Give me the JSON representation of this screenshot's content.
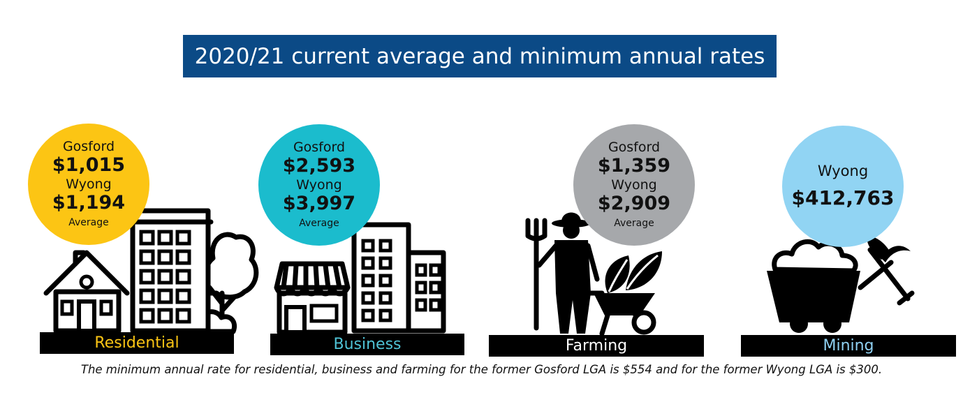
{
  "title": "2020/21 current average and minimum annual rates",
  "colors": {
    "title_bg": "#0b4a86",
    "residential": "#fcc514",
    "business": "#1bbccd",
    "farming": "#a6a8ab",
    "mining": "#91d4f3"
  },
  "categories": [
    {
      "name": "Residential",
      "gosford_label": "Gosford",
      "gosford_value": "$1,015",
      "wyong_label": "Wyong",
      "wyong_value": "$1,194",
      "note": "Average",
      "icon": "house-and-apartment-icon"
    },
    {
      "name": "Business",
      "gosford_label": "Gosford",
      "gosford_value": "$2,593",
      "wyong_label": "Wyong",
      "wyong_value": "$3,997",
      "note": "Average",
      "icon": "shop-and-office-icon"
    },
    {
      "name": "Farming",
      "gosford_label": "Gosford",
      "gosford_value": "$1,359",
      "wyong_label": "Wyong",
      "wyong_value": "$2,909",
      "note": "Average",
      "icon": "farmer-wheelbarrow-icon"
    },
    {
      "name": "Mining",
      "wyong_label": "Wyong",
      "wyong_value": "$412,763",
      "icon": "mine-cart-icon"
    }
  ],
  "footnote": "The minimum annual rate for residential, business and farming for the former Gosford LGA is $554 and for the former Wyong LGA is $300."
}
